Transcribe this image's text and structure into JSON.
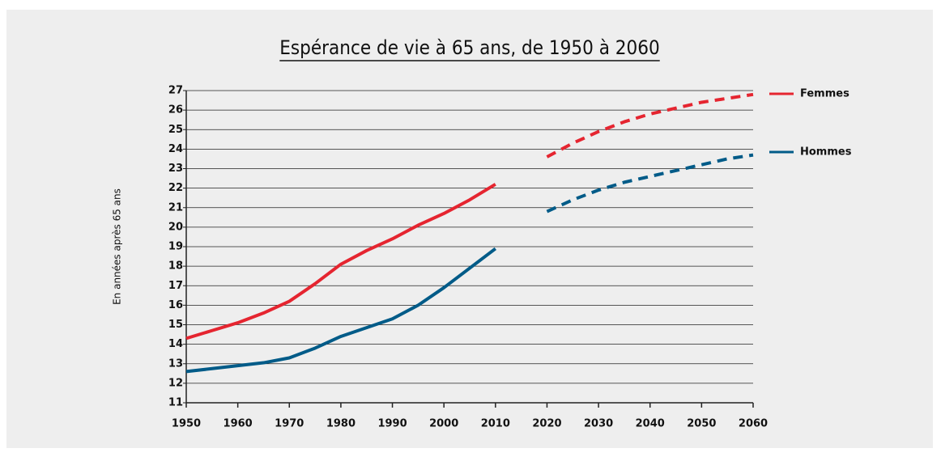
{
  "chart_data": {
    "type": "line",
    "title": "Espérance de vie à 65 ans, de 1950 à 2060",
    "y_label": "En années après 65 ans",
    "x": [
      1950,
      1955,
      1960,
      1965,
      1970,
      1975,
      1980,
      1985,
      1990,
      1995,
      2000,
      2005,
      2010,
      2015,
      2020,
      2025,
      2030,
      2035,
      2040,
      2045,
      2050,
      2055,
      2060
    ],
    "series": [
      {
        "name": "Femmes",
        "color": "#e52530",
        "values": [
          14.3,
          14.7,
          15.1,
          15.6,
          16.2,
          17.1,
          18.1,
          18.8,
          19.4,
          20.1,
          20.7,
          21.4,
          22.2,
          null,
          23.6,
          24.3,
          24.9,
          25.4,
          25.8,
          26.1,
          26.4,
          26.6,
          26.8
        ]
      },
      {
        "name": "Hommes",
        "color": "#005b88",
        "values": [
          12.6,
          12.75,
          12.9,
          13.05,
          13.3,
          13.8,
          14.4,
          14.85,
          15.3,
          16.0,
          16.9,
          17.9,
          18.9,
          null,
          20.8,
          21.4,
          21.9,
          22.3,
          22.6,
          22.9,
          23.2,
          23.5,
          23.7
        ]
      }
    ],
    "projected_style": "dashed",
    "xlim": [
      1950,
      2060
    ],
    "xticks": [
      1950,
      1960,
      1970,
      1980,
      1990,
      2000,
      2010,
      2020,
      2030,
      2040,
      2050,
      2060
    ],
    "ylim": [
      11,
      27
    ],
    "yticks": [
      11,
      12,
      13,
      14,
      15,
      16,
      17,
      18,
      19,
      20,
      21,
      22,
      23,
      24,
      25,
      26,
      27
    ],
    "grid": true,
    "legend": "right"
  }
}
